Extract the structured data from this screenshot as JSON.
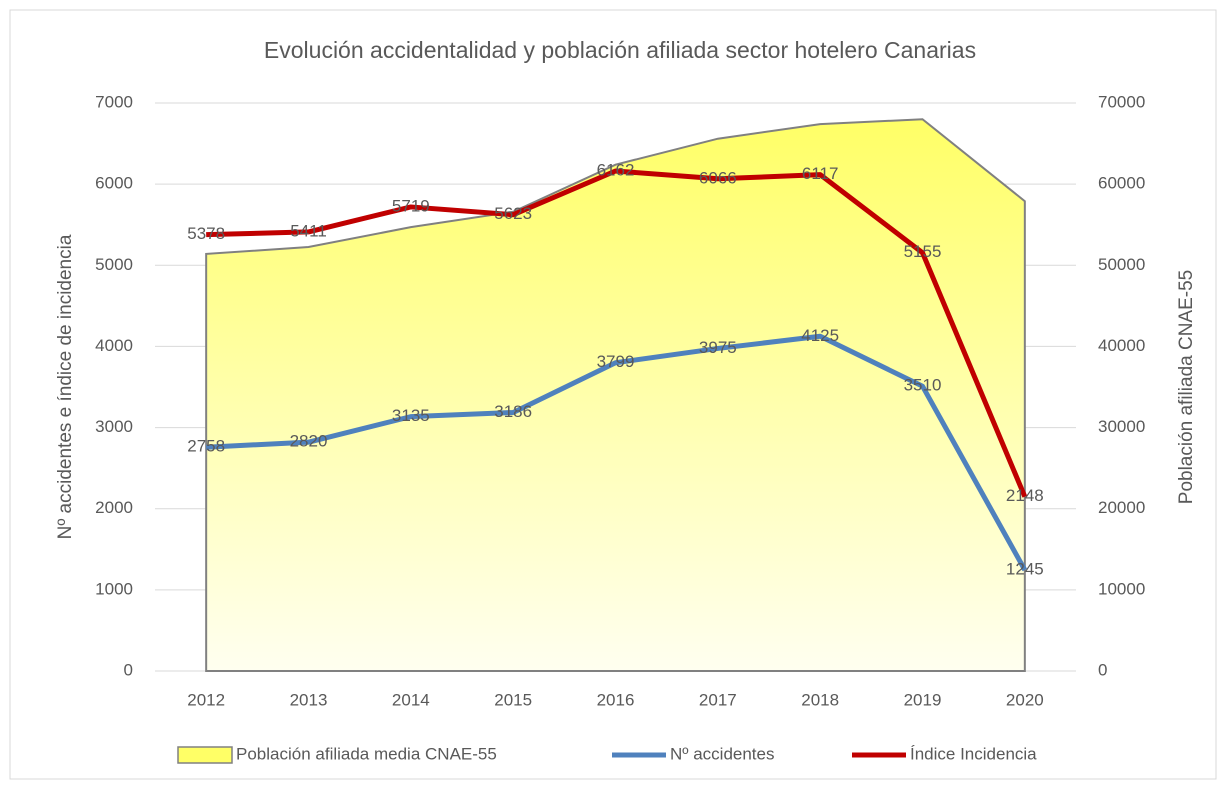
{
  "chart_data": {
    "type": "line",
    "title": "Evolución accidentalidad y población afiliada sector hotelero Canarias",
    "ylabel": "Nº accidentes e índice de incidencia",
    "y2label": "Población afiliada CNAE-55",
    "categories": [
      "2012",
      "2013",
      "2014",
      "2015",
      "2016",
      "2017",
      "2018",
      "2019",
      "2020"
    ],
    "ylim": [
      0,
      7000
    ],
    "yticks": [
      0,
      1000,
      2000,
      3000,
      4000,
      5000,
      6000,
      7000
    ],
    "y2lim": [
      0,
      70000
    ],
    "y2ticks": [
      0,
      10000,
      20000,
      30000,
      40000,
      50000,
      60000,
      70000
    ],
    "grid": true,
    "legend": "bottom",
    "series": [
      {
        "name": "Población afiliada media CNAE-55",
        "type": "area",
        "axis": "y2",
        "color": "#ffff66",
        "values": [
          51400,
          52250,
          54700,
          56600,
          62400,
          65600,
          67400,
          68000,
          57900
        ]
      },
      {
        "name": "Nº accidentes",
        "type": "line",
        "color": "#4f81bd",
        "values": [
          2758,
          2820,
          3135,
          3186,
          3799,
          3975,
          4125,
          3510,
          1245
        ]
      },
      {
        "name": "Índice Incidencia",
        "type": "line",
        "color": "#c00000",
        "values": [
          5378,
          5411,
          5719,
          5623,
          6162,
          6066,
          6117,
          5155,
          2148
        ]
      }
    ]
  }
}
